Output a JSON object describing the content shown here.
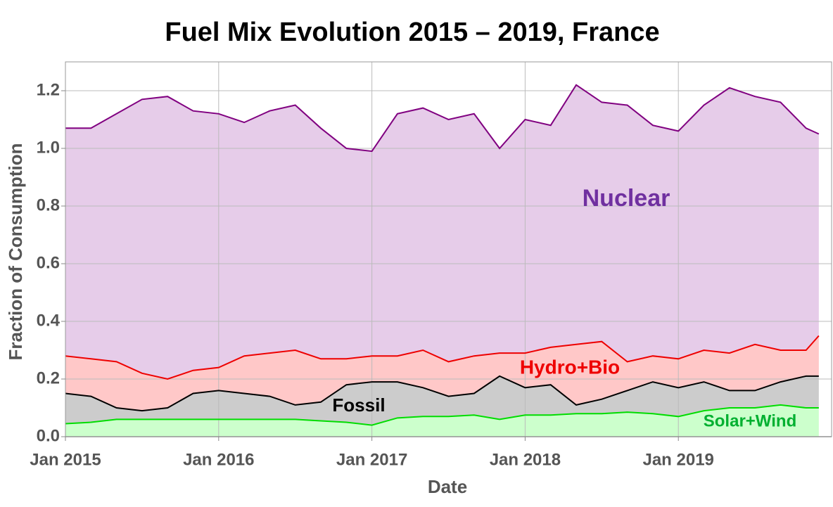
{
  "chart_data": {
    "type": "stacked-area",
    "title": "Fuel Mix Evolution 2015 – 2019, France",
    "x_label": "Date",
    "y_label": "Fraction of Consumption",
    "x": [
      "2015-01",
      "2015-03",
      "2015-05",
      "2015-07",
      "2015-09",
      "2015-11",
      "2016-01",
      "2016-03",
      "2016-05",
      "2016-07",
      "2016-09",
      "2016-11",
      "2017-01",
      "2017-03",
      "2017-05",
      "2017-07",
      "2017-09",
      "2017-11",
      "2018-01",
      "2018-03",
      "2018-05",
      "2018-07",
      "2018-09",
      "2018-11",
      "2019-01",
      "2019-03",
      "2019-05",
      "2019-07",
      "2019-09",
      "2019-11",
      "2019-12"
    ],
    "series": [
      {
        "name": "Solar+Wind",
        "color": "#00dd00",
        "fill": "#ccffcc",
        "values": [
          0.045,
          0.05,
          0.06,
          0.06,
          0.06,
          0.06,
          0.06,
          0.06,
          0.06,
          0.06,
          0.055,
          0.05,
          0.04,
          0.065,
          0.07,
          0.07,
          0.075,
          0.06,
          0.075,
          0.075,
          0.08,
          0.08,
          0.085,
          0.08,
          0.07,
          0.09,
          0.1,
          0.1,
          0.11,
          0.1,
          0.1
        ]
      },
      {
        "name": "Fossil",
        "color": "#000000",
        "fill": "#cccccc",
        "values": [
          0.105,
          0.09,
          0.04,
          0.03,
          0.04,
          0.09,
          0.1,
          0.09,
          0.08,
          0.05,
          0.065,
          0.13,
          0.15,
          0.125,
          0.1,
          0.07,
          0.075,
          0.15,
          0.095,
          0.105,
          0.03,
          0.05,
          0.075,
          0.11,
          0.1,
          0.1,
          0.06,
          0.06,
          0.08,
          0.11,
          0.11
        ]
      },
      {
        "name": "Hydro+Bio",
        "color": "#ee0000",
        "fill": "#ffc8c8",
        "values": [
          0.13,
          0.13,
          0.16,
          0.13,
          0.1,
          0.08,
          0.08,
          0.13,
          0.15,
          0.19,
          0.15,
          0.09,
          0.09,
          0.09,
          0.13,
          0.12,
          0.13,
          0.08,
          0.12,
          0.13,
          0.21,
          0.2,
          0.1,
          0.09,
          0.1,
          0.11,
          0.13,
          0.16,
          0.11,
          0.09,
          0.14
        ]
      },
      {
        "name": "Nuclear",
        "color": "#800080",
        "fill": "#e6cce9",
        "values": [
          0.79,
          0.8,
          0.86,
          0.95,
          0.98,
          0.9,
          0.88,
          0.81,
          0.84,
          0.85,
          0.8,
          0.73,
          0.71,
          0.84,
          0.84,
          0.84,
          0.84,
          0.71,
          0.81,
          0.77,
          0.9,
          0.83,
          0.89,
          0.8,
          0.79,
          0.85,
          0.92,
          0.86,
          0.86,
          0.77,
          0.7
        ]
      }
    ],
    "label_colors": [
      "#00b030",
      "#000000",
      "#ee0000",
      "#7030a0"
    ],
    "xlim": [
      "2015-01",
      "2020-01"
    ],
    "xticks": [
      {
        "value": "2015-01",
        "label": "Jan 2015"
      },
      {
        "value": "2016-01",
        "label": "Jan 2016"
      },
      {
        "value": "2017-01",
        "label": "Jan 2017"
      },
      {
        "value": "2018-01",
        "label": "Jan 2018"
      },
      {
        "value": "2019-01",
        "label": "Jan 2019"
      }
    ],
    "ylim": [
      0,
      1.3
    ],
    "yticks": [
      {
        "value": 0,
        "label": "0.0"
      },
      0.2,
      0.4,
      0.6,
      0.8,
      {
        "value": 1,
        "label": "1.0"
      },
      1.2
    ],
    "grid": true
  }
}
